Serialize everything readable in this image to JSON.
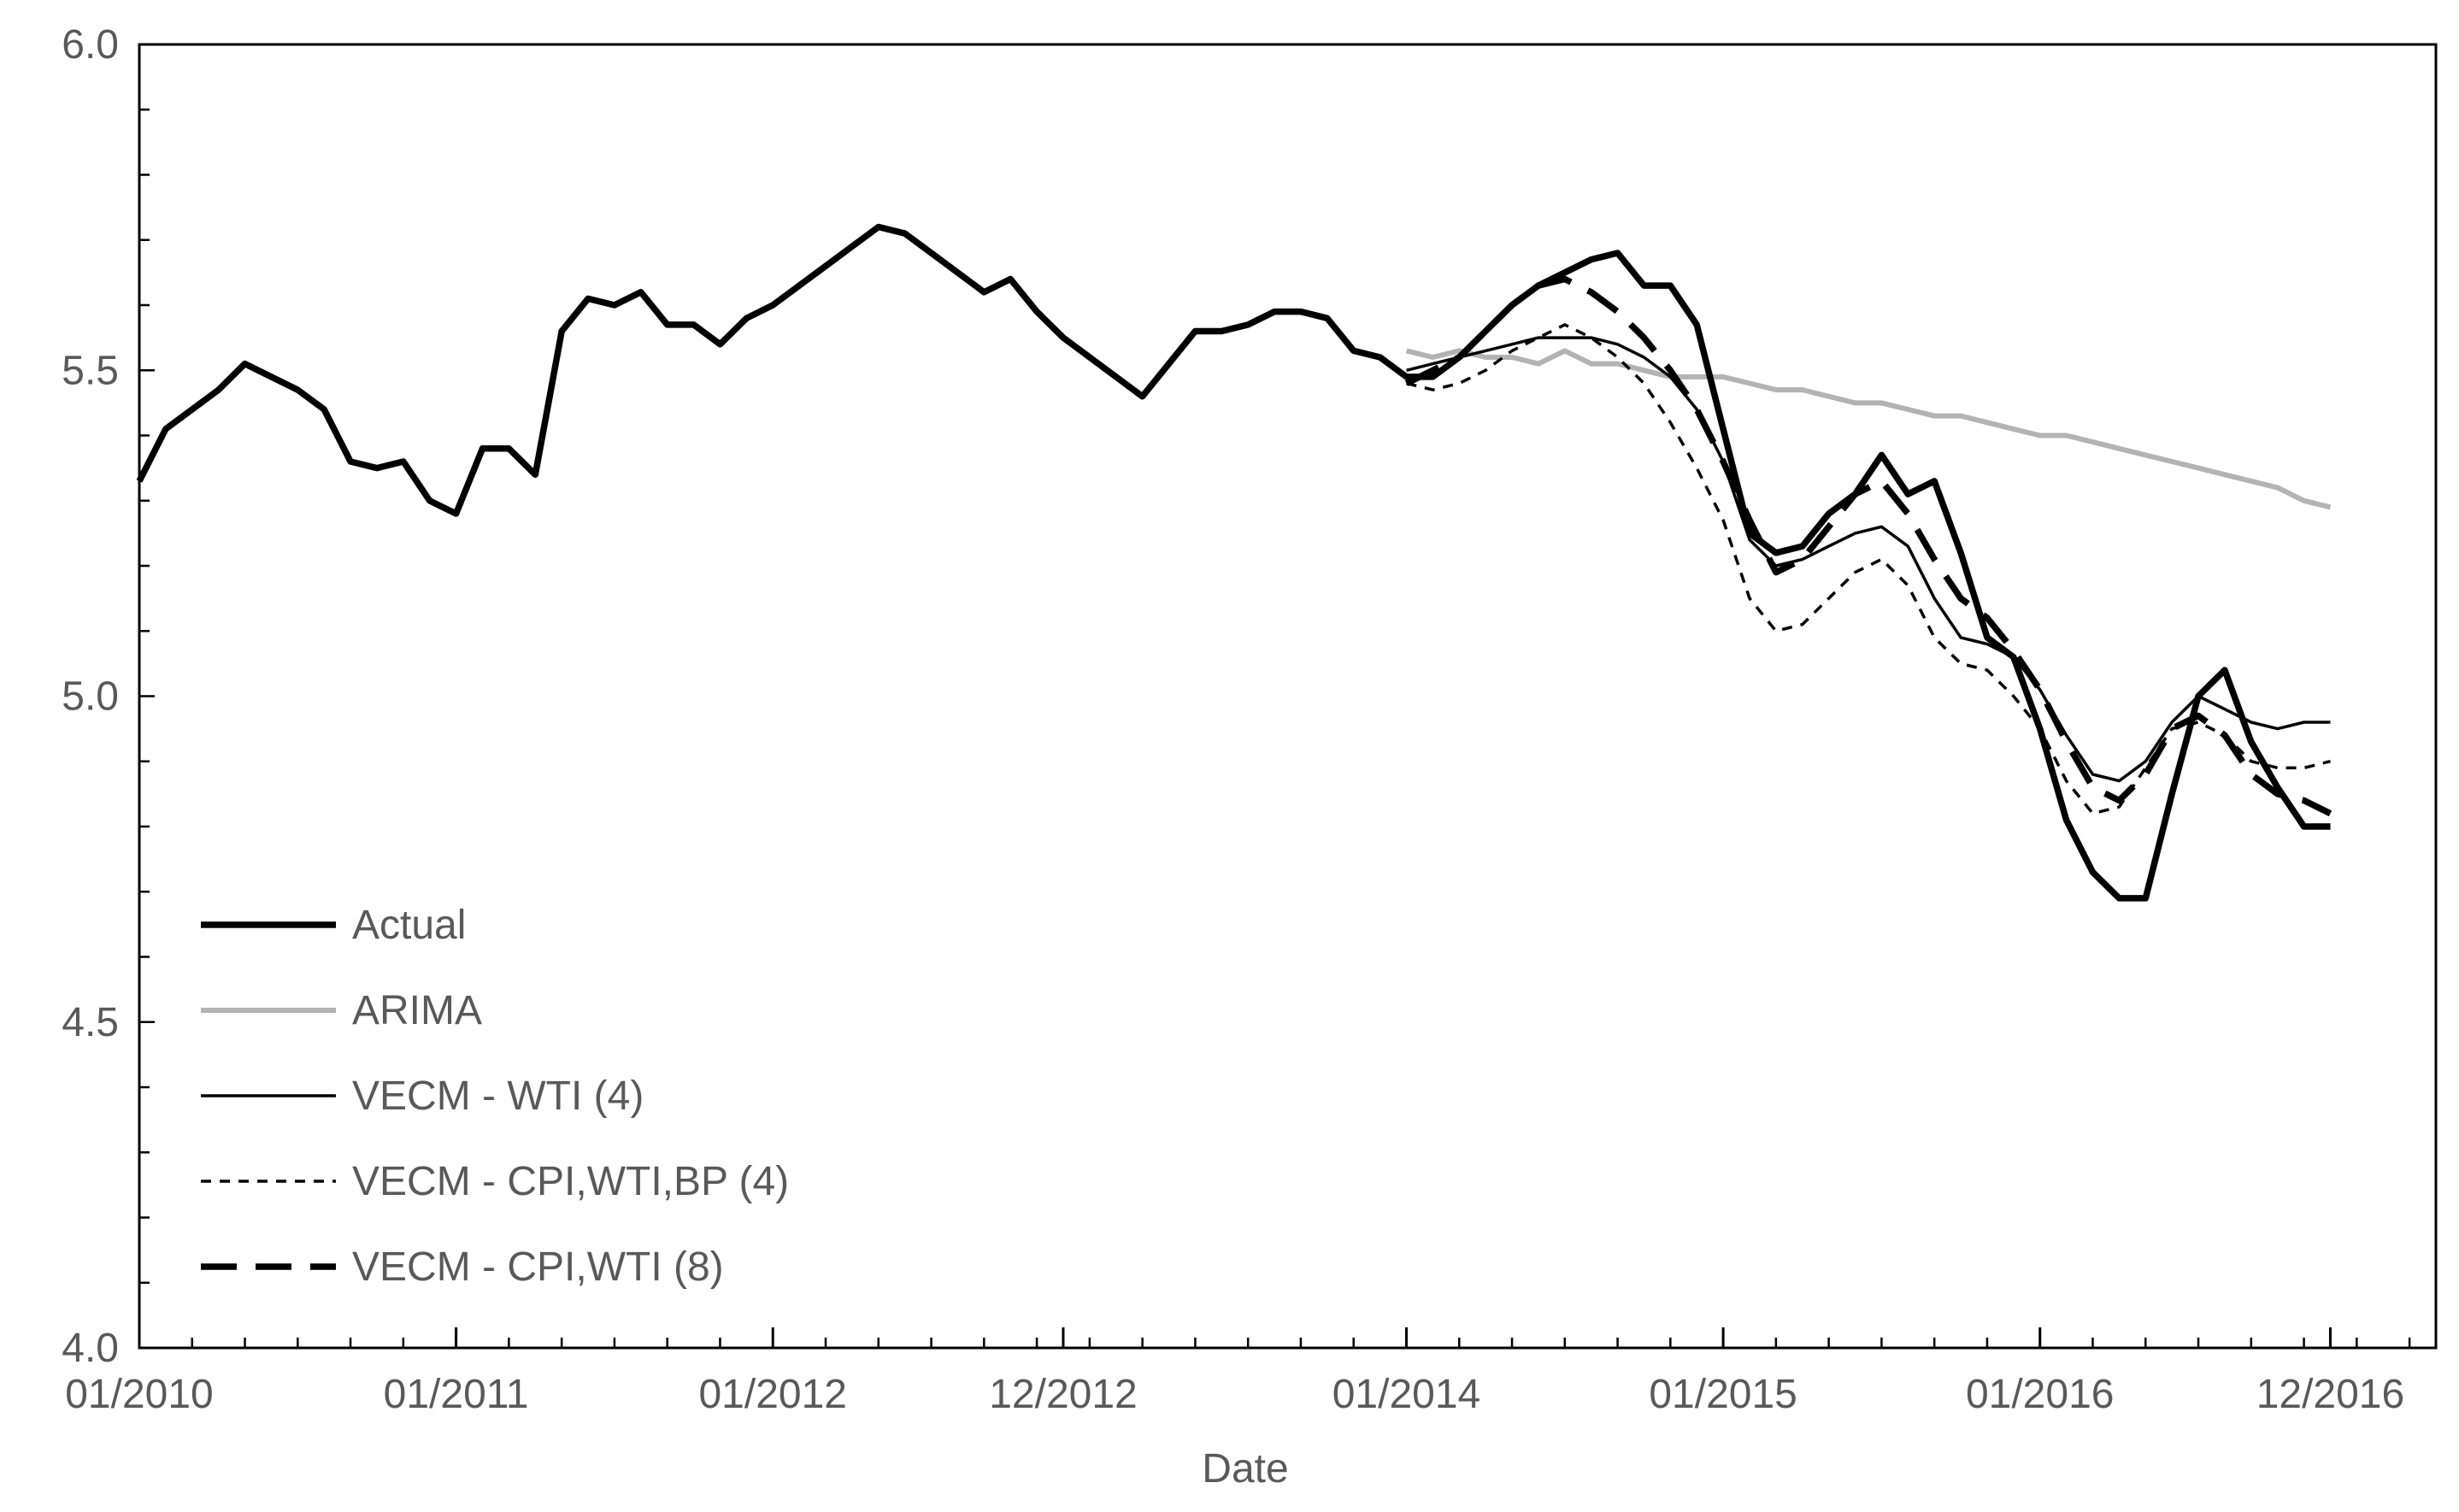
{
  "chart_data": {
    "type": "line",
    "title": "",
    "xlabel": "Date",
    "ylabel": "",
    "ylim": [
      4.0,
      6.0
    ],
    "y_ticks": [
      "4.0",
      "4.5",
      "5.0",
      "5.5",
      "6.0"
    ],
    "x_tick_labels": [
      "01/2010",
      "01/2011",
      "01/2012",
      "12/2012",
      "01/2014",
      "01/2015",
      "01/2016",
      "12/2016"
    ],
    "x_tick_dates": [
      "2010-01",
      "2011-01",
      "2012-01",
      "2012-12",
      "2014-01",
      "2015-01",
      "2016-01",
      "2016-12"
    ],
    "x_range": [
      "2010-01",
      "2017-04"
    ],
    "grid": false,
    "legend_position": "lower-left",
    "series": [
      {
        "name": "Actual",
        "color": "#000000",
        "style": "thick-solid",
        "x": [
          "2010-01",
          "2010-02",
          "2010-03",
          "2010-04",
          "2010-05",
          "2010-06",
          "2010-07",
          "2010-08",
          "2010-09",
          "2010-10",
          "2010-11",
          "2010-12",
          "2011-01",
          "2011-02",
          "2011-03",
          "2011-04",
          "2011-05",
          "2011-06",
          "2011-07",
          "2011-08",
          "2011-09",
          "2011-10",
          "2011-11",
          "2011-12",
          "2012-01",
          "2012-02",
          "2012-03",
          "2012-04",
          "2012-05",
          "2012-06",
          "2012-07",
          "2012-08",
          "2012-09",
          "2012-10",
          "2012-11",
          "2012-12",
          "2013-01",
          "2013-02",
          "2013-03",
          "2013-04",
          "2013-05",
          "2013-06",
          "2013-07",
          "2013-08",
          "2013-09",
          "2013-10",
          "2013-11",
          "2013-12",
          "2014-01",
          "2014-02",
          "2014-03",
          "2014-04",
          "2014-05",
          "2014-06",
          "2014-07",
          "2014-08",
          "2014-09",
          "2014-10",
          "2014-11",
          "2014-12",
          "2015-01",
          "2015-02",
          "2015-03",
          "2015-04",
          "2015-05",
          "2015-06",
          "2015-07",
          "2015-08",
          "2015-09",
          "2015-10",
          "2015-11",
          "2015-12",
          "2016-01",
          "2016-02",
          "2016-03",
          "2016-04",
          "2016-05",
          "2016-06",
          "2016-07",
          "2016-08",
          "2016-09",
          "2016-10",
          "2016-11",
          "2016-12"
        ],
        "values": [
          5.33,
          5.41,
          5.44,
          5.47,
          5.51,
          5.49,
          5.47,
          5.44,
          5.36,
          5.35,
          5.36,
          5.3,
          5.28,
          5.38,
          5.38,
          5.34,
          5.56,
          5.61,
          5.6,
          5.62,
          5.57,
          5.57,
          5.54,
          5.58,
          5.6,
          5.63,
          5.66,
          5.69,
          5.72,
          5.71,
          5.68,
          5.65,
          5.62,
          5.64,
          5.59,
          5.55,
          5.52,
          5.49,
          5.46,
          5.51,
          5.56,
          5.56,
          5.57,
          5.59,
          5.59,
          5.58,
          5.53,
          5.52,
          5.49,
          5.49,
          5.52,
          5.56,
          5.6,
          5.63,
          5.65,
          5.67,
          5.68,
          5.63,
          5.63,
          5.57,
          5.41,
          5.25,
          5.22,
          5.23,
          5.28,
          5.31,
          5.37,
          5.31,
          5.33,
          5.22,
          5.09,
          5.06,
          4.95,
          4.81,
          4.73,
          4.69,
          4.69,
          4.85,
          5.0,
          5.04,
          4.93,
          4.86,
          4.8,
          4.8
        ]
      },
      {
        "name": "ARIMA",
        "color": "#b3b3b3",
        "style": "solid",
        "x": [
          "2014-01",
          "2014-02",
          "2014-03",
          "2014-04",
          "2014-05",
          "2014-06",
          "2014-07",
          "2014-08",
          "2014-09",
          "2014-10",
          "2014-11",
          "2014-12",
          "2015-01",
          "2015-02",
          "2015-03",
          "2015-04",
          "2015-05",
          "2015-06",
          "2015-07",
          "2015-08",
          "2015-09",
          "2015-10",
          "2015-11",
          "2015-12",
          "2016-01",
          "2016-02",
          "2016-03",
          "2016-04",
          "2016-05",
          "2016-06",
          "2016-07",
          "2016-08",
          "2016-09",
          "2016-10",
          "2016-11",
          "2016-12"
        ],
        "values": [
          5.53,
          5.52,
          5.53,
          5.52,
          5.52,
          5.51,
          5.53,
          5.51,
          5.51,
          5.5,
          5.49,
          5.49,
          5.49,
          5.48,
          5.47,
          5.47,
          5.46,
          5.45,
          5.45,
          5.44,
          5.43,
          5.43,
          5.42,
          5.41,
          5.4,
          5.4,
          5.39,
          5.38,
          5.37,
          5.36,
          5.35,
          5.34,
          5.33,
          5.32,
          5.3,
          5.29
        ]
      },
      {
        "name": "VECM - WTI (4)",
        "color": "#000000",
        "style": "thin-solid",
        "x": [
          "2014-01",
          "2014-02",
          "2014-03",
          "2014-04",
          "2014-05",
          "2014-06",
          "2014-07",
          "2014-08",
          "2014-09",
          "2014-10",
          "2014-11",
          "2014-12",
          "2015-01",
          "2015-02",
          "2015-03",
          "2015-04",
          "2015-05",
          "2015-06",
          "2015-07",
          "2015-08",
          "2015-09",
          "2015-10",
          "2015-11",
          "2015-12",
          "2016-01",
          "2016-02",
          "2016-03",
          "2016-04",
          "2016-05",
          "2016-06",
          "2016-07",
          "2016-08",
          "2016-09",
          "2016-10",
          "2016-11",
          "2016-12"
        ],
        "values": [
          5.5,
          5.51,
          5.52,
          5.53,
          5.54,
          5.55,
          5.55,
          5.55,
          5.54,
          5.52,
          5.49,
          5.44,
          5.36,
          5.24,
          5.2,
          5.21,
          5.23,
          5.25,
          5.26,
          5.23,
          5.15,
          5.09,
          5.08,
          5.06,
          5.01,
          4.94,
          4.88,
          4.87,
          4.9,
          4.96,
          5.0,
          4.98,
          4.96,
          4.95,
          4.96,
          4.96
        ]
      },
      {
        "name": "VECM - CPI,WTI,BP (4)",
        "color": "#000000",
        "style": "short-dash",
        "x": [
          "2014-01",
          "2014-02",
          "2014-03",
          "2014-04",
          "2014-05",
          "2014-06",
          "2014-07",
          "2014-08",
          "2014-09",
          "2014-10",
          "2014-11",
          "2014-12",
          "2015-01",
          "2015-02",
          "2015-03",
          "2015-04",
          "2015-05",
          "2015-06",
          "2015-07",
          "2015-08",
          "2015-09",
          "2015-10",
          "2015-11",
          "2015-12",
          "2016-01",
          "2016-02",
          "2016-03",
          "2016-04",
          "2016-05",
          "2016-06",
          "2016-07",
          "2016-08",
          "2016-09",
          "2016-10",
          "2016-11",
          "2016-12"
        ],
        "values": [
          5.48,
          5.47,
          5.48,
          5.5,
          5.53,
          5.55,
          5.57,
          5.55,
          5.52,
          5.48,
          5.42,
          5.35,
          5.27,
          5.15,
          5.1,
          5.11,
          5.15,
          5.19,
          5.21,
          5.17,
          5.09,
          5.05,
          5.04,
          5.0,
          4.95,
          4.87,
          4.82,
          4.83,
          4.89,
          4.95,
          4.96,
          4.94,
          4.9,
          4.89,
          4.89,
          4.9
        ]
      },
      {
        "name": "VECM - CPI,WTI (8)",
        "color": "#000000",
        "style": "long-dash",
        "x": [
          "2014-01",
          "2014-02",
          "2014-03",
          "2014-04",
          "2014-05",
          "2014-06",
          "2014-07",
          "2014-08",
          "2014-09",
          "2014-10",
          "2014-11",
          "2014-12",
          "2015-01",
          "2015-02",
          "2015-03",
          "2015-04",
          "2015-05",
          "2015-06",
          "2015-07",
          "2015-08",
          "2015-09",
          "2015-10",
          "2015-11",
          "2015-12",
          "2016-01",
          "2016-02",
          "2016-03",
          "2016-04",
          "2016-05",
          "2016-06",
          "2016-07",
          "2016-08",
          "2016-09",
          "2016-10",
          "2016-11",
          "2016-12"
        ],
        "values": [
          5.48,
          5.5,
          5.52,
          5.56,
          5.6,
          5.63,
          5.64,
          5.62,
          5.59,
          5.55,
          5.5,
          5.44,
          5.36,
          5.27,
          5.19,
          5.21,
          5.26,
          5.31,
          5.33,
          5.28,
          5.21,
          5.15,
          5.12,
          5.07,
          5.01,
          4.93,
          4.86,
          4.84,
          4.88,
          4.95,
          4.97,
          4.94,
          4.88,
          4.85,
          4.84,
          4.82
        ]
      }
    ]
  }
}
